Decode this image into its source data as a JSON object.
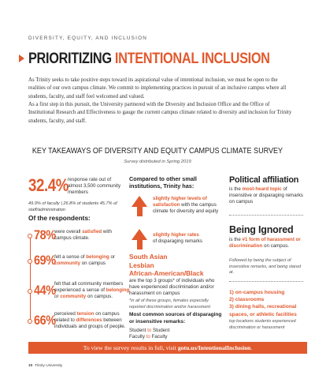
{
  "header": {
    "kicker": "DIVERSITY, EQUITY, AND INCLUSION",
    "title_part1": "PRIORITIZING",
    "title_part2": "INTENTIONAL INCLUSION"
  },
  "intro": {
    "paragraph1": "As Trinity seeks to take positive steps toward its aspirational value of intentional inclusion, we must be open to the realities of our own campus climate. We commit to implementing practices in pursuit of an inclusive campus where all students, faculty, and staff feel welcomed and valued.",
    "paragraph2": "As a first step in this pursuit, the University partnered with the Diversity and Inclusion Office and the Office of Institutional Research and Effectiveness to gauge the current campus climate related to diversity and inclusion for Trinity students, faculty, and staff."
  },
  "section": {
    "title": "KEY TAKEAWAYS OF DIVERSITY AND EQUITY CAMPUS CLIMATE SURVEY",
    "subtitle": "Survey distributed in Spring 2019"
  },
  "response": {
    "pct": "32.4%",
    "note": "response rate out of almost 3,500 community members",
    "breakdown": "49.9% of faculty | 26.8% of students 45.7% of staff/administration",
    "respondents_label": "Of the respondents:"
  },
  "stats": [
    {
      "pct": "78%",
      "pre": "were overall ",
      "em": "satisfied",
      "post": " with campus climate."
    },
    {
      "pct": "69%",
      "pre": "felt a sense of ",
      "em": "belonging",
      "mid": " or ",
      "em2": "community",
      "post": " on campus"
    },
    {
      "pct": "44%",
      "pre": "felt that all community members experienced a sense of ",
      "em": "belonging",
      "mid": " or ",
      "em2": "community",
      "post": " on campus."
    },
    {
      "pct": "66%",
      "pre": "perceived ",
      "em": "tension",
      "mid": " on campus related to ",
      "em2": "differences",
      "post": " between individuals and groups of people."
    }
  ],
  "comparison": {
    "heading": "Compared to other small institutions, Trinity has:",
    "item1_em": "slightly higher levels of satisfaction",
    "item1_post": " with the campus climate for diversity and equity",
    "item2_em": "slightly higher rates",
    "item2_post": "of disparaging remarks"
  },
  "groups": {
    "line1": "South Asian",
    "line2": "Lesbian",
    "line3": "African-American/Black",
    "text": "are the top 3 groups* of individuals who have experienced discrimination and/or harassment on campus",
    "note": "*in all of these groups, females especially reported discrimination and/or harassment"
  },
  "common_sources": {
    "heading": "Most common sources of disparaging or insensitive remarks:",
    "row1_a": "Student",
    "row1_to": " to ",
    "row1_b": "Student",
    "row2_a": "Faculty",
    "row2_to": " to ",
    "row2_b": "Faculty"
  },
  "political": {
    "title": "Political affiliation",
    "pre": "is the ",
    "em": "most-heard topic",
    "post": " of insensitive or disparaging remarks on campus"
  },
  "ignored": {
    "title": "Being Ignored",
    "pre": "is the ",
    "em": "#1 form of harassment or discrimination",
    "post": " on campus.",
    "note": "Followed by being the subject of insensitive remarks, and being stared at."
  },
  "locations": {
    "items": [
      "1) on-campus housing",
      "2) classrooms",
      "3) dining halls, recreational spaces, or athletic facilities"
    ],
    "note": "top locations students experienced discrimination or harassment"
  },
  "banner": {
    "pre": "To view the survey results in full, visit ",
    "link": "gotu.us/IntentionalInclusion",
    "post": "."
  },
  "footer": {
    "page": "10",
    "name": "Trinity University"
  },
  "colors": {
    "accent": "#e15a2e",
    "text": "#333333"
  }
}
